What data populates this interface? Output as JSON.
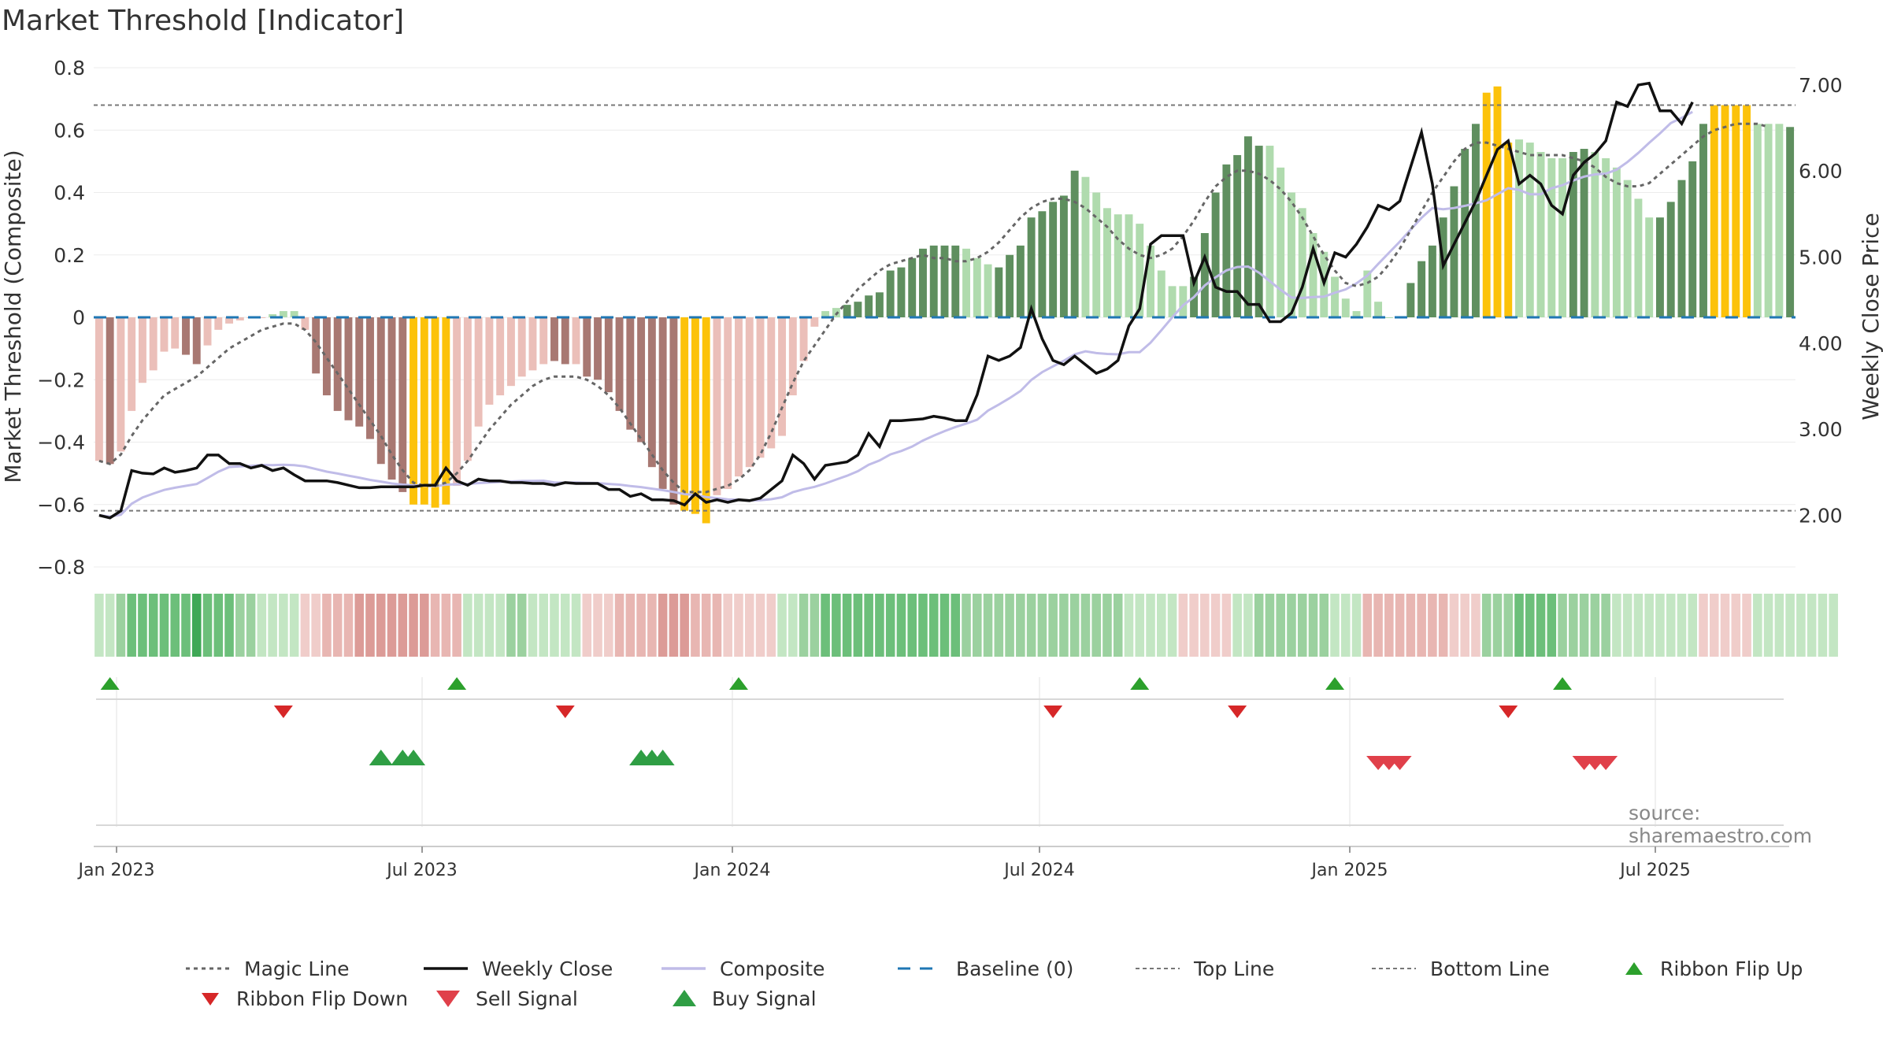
{
  "title": "Market Threshold [Indicator]",
  "source": "source: sharemaestro.com",
  "colors": {
    "pos_dark": "#5f8f5f",
    "pos_light": "#b0dbae",
    "neg_dark": "#a87872",
    "neg_light": "#ebbfb9",
    "extreme": "#fcc20a",
    "magic": "#666666",
    "close": "#111111",
    "composite": "#c0bce8",
    "baseline": "#1f77b4",
    "thresholds": "#777777",
    "buy": "#2ca02c",
    "sell": "#d62728"
  },
  "chart_data": {
    "type": "bar",
    "title": "Market Threshold [Indicator]",
    "ylabel": "Market Threshold (Composite)",
    "y2label": "Weekly Close Price",
    "ylim": [
      -0.8,
      0.8
    ],
    "y2lim": [
      1.4,
      7.2
    ],
    "yticks": [
      "0.8",
      "0.6",
      "0.4",
      "0.2",
      "0",
      "−0.2",
      "−0.4",
      "−0.6",
      "−0.8"
    ],
    "y2ticks": [
      "7.00",
      "6.00",
      "5.00",
      "4.00",
      "3.00",
      "2.00"
    ],
    "x_ticks": [
      "Jan 2023",
      "Jul 2023",
      "Jan 2024",
      "Jul 2024",
      "Jan 2025",
      "Jul 2025"
    ],
    "top_line": 0.68,
    "bottom_line": -0.62,
    "baseline": 0,
    "composite": [
      -0.46,
      -0.47,
      -0.43,
      -0.3,
      -0.21,
      -0.17,
      -0.11,
      -0.1,
      -0.12,
      -0.15,
      -0.09,
      -0.04,
      -0.02,
      -0.01,
      0.0,
      0.0,
      0.01,
      0.02,
      0.02,
      -0.04,
      -0.18,
      -0.25,
      -0.3,
      -0.33,
      -0.35,
      -0.39,
      -0.47,
      -0.52,
      -0.56,
      -0.6,
      -0.6,
      -0.61,
      -0.6,
      -0.54,
      -0.46,
      -0.35,
      -0.28,
      -0.25,
      -0.22,
      -0.19,
      -0.17,
      -0.15,
      -0.14,
      -0.15,
      -0.15,
      -0.19,
      -0.2,
      -0.24,
      -0.3,
      -0.36,
      -0.4,
      -0.48,
      -0.55,
      -0.6,
      -0.62,
      -0.63,
      -0.66,
      -0.57,
      -0.55,
      -0.51,
      -0.48,
      -0.45,
      -0.42,
      -0.38,
      -0.25,
      -0.14,
      -0.03,
      0.02,
      0.03,
      0.04,
      0.05,
      0.07,
      0.08,
      0.15,
      0.16,
      0.19,
      0.22,
      0.23,
      0.23,
      0.23,
      0.22,
      0.19,
      0.17,
      0.16,
      0.2,
      0.23,
      0.32,
      0.34,
      0.37,
      0.39,
      0.47,
      0.45,
      0.4,
      0.35,
      0.33,
      0.33,
      0.3,
      0.23,
      0.15,
      0.1,
      0.1,
      0.13,
      0.27,
      0.4,
      0.49,
      0.52,
      0.58,
      0.55,
      0.55,
      0.48,
      0.4,
      0.35,
      0.27,
      0.21,
      0.13,
      0.06,
      0.02,
      0.15,
      0.05,
      0.0,
      0.0,
      0.11,
      0.18,
      0.23,
      0.32,
      0.42,
      0.54,
      0.62,
      0.72,
      0.74,
      0.56,
      0.57,
      0.56,
      0.53,
      0.51,
      0.51,
      0.53,
      0.54,
      0.53,
      0.51,
      0.48,
      0.44,
      0.38,
      0.32,
      0.32,
      0.37,
      0.44,
      0.5,
      0.62,
      0.68,
      0.68,
      0.68,
      0.68,
      0.62,
      0.62,
      0.62,
      0.61
    ],
    "bar_shade": [
      "neg-l",
      "neg-d",
      "neg-l",
      "neg-l",
      "neg-l",
      "neg-l",
      "neg-l",
      "neg-l",
      "neg-d",
      "neg-d",
      "neg-l",
      "neg-l",
      "neg-l",
      "neg-l",
      "neg-l",
      "neg-l",
      "pos-l",
      "pos-l",
      "pos-l",
      "neg-l",
      "neg-d",
      "neg-d",
      "neg-d",
      "neg-d",
      "neg-d",
      "neg-d",
      "neg-d",
      "neg-d",
      "neg-d",
      "ext",
      "ext",
      "ext",
      "ext",
      "neg-l",
      "neg-l",
      "neg-l",
      "neg-l",
      "neg-l",
      "neg-l",
      "neg-l",
      "neg-l",
      "neg-l",
      "neg-d",
      "neg-d",
      "neg-l",
      "neg-d",
      "neg-d",
      "neg-d",
      "neg-d",
      "neg-d",
      "neg-d",
      "neg-d",
      "neg-d",
      "neg-d",
      "ext",
      "ext",
      "ext",
      "neg-l",
      "neg-l",
      "neg-l",
      "neg-l",
      "neg-l",
      "neg-l",
      "neg-l",
      "neg-l",
      "neg-l",
      "neg-l",
      "pos-l",
      "pos-l",
      "pos-d",
      "pos-d",
      "pos-d",
      "pos-d",
      "pos-d",
      "pos-d",
      "pos-d",
      "pos-d",
      "pos-d",
      "pos-d",
      "pos-d",
      "pos-l",
      "pos-l",
      "pos-l",
      "pos-d",
      "pos-d",
      "pos-d",
      "pos-d",
      "pos-d",
      "pos-d",
      "pos-d",
      "pos-d",
      "pos-l",
      "pos-l",
      "pos-l",
      "pos-l",
      "pos-l",
      "pos-l",
      "pos-l",
      "pos-l",
      "pos-l",
      "pos-l",
      "pos-d",
      "pos-d",
      "pos-d",
      "pos-d",
      "pos-d",
      "pos-d",
      "pos-d",
      "pos-l",
      "pos-l",
      "pos-l",
      "pos-l",
      "pos-l",
      "pos-l",
      "pos-l",
      "pos-l",
      "pos-l",
      "pos-l",
      "pos-l",
      "pos-l",
      "pos-l",
      "pos-d",
      "pos-d",
      "pos-d",
      "pos-d",
      "pos-d",
      "pos-d",
      "pos-d",
      "ext",
      "ext",
      "ext",
      "pos-l",
      "pos-l",
      "pos-l",
      "pos-l",
      "pos-l",
      "pos-d",
      "pos-d",
      "pos-l",
      "pos-l",
      "pos-l",
      "pos-l",
      "pos-l",
      "pos-l",
      "pos-d",
      "pos-d",
      "pos-d",
      "pos-d",
      "pos-d",
      "ext",
      "ext",
      "ext",
      "ext",
      "pos-l",
      "pos-l",
      "pos-l",
      "pos-d"
    ],
    "magic_line": [
      -0.46,
      -0.47,
      -0.44,
      -0.38,
      -0.33,
      -0.29,
      -0.25,
      -0.23,
      -0.21,
      -0.19,
      -0.16,
      -0.13,
      -0.1,
      -0.08,
      -0.06,
      -0.04,
      -0.03,
      -0.02,
      -0.02,
      -0.04,
      -0.08,
      -0.13,
      -0.18,
      -0.23,
      -0.28,
      -0.33,
      -0.38,
      -0.44,
      -0.49,
      -0.53,
      -0.54,
      -0.54,
      -0.53,
      -0.5,
      -0.46,
      -0.41,
      -0.36,
      -0.32,
      -0.28,
      -0.25,
      -0.22,
      -0.2,
      -0.19,
      -0.19,
      -0.19,
      -0.2,
      -0.22,
      -0.25,
      -0.29,
      -0.34,
      -0.39,
      -0.44,
      -0.49,
      -0.53,
      -0.56,
      -0.56,
      -0.56,
      -0.55,
      -0.54,
      -0.52,
      -0.49,
      -0.44,
      -0.37,
      -0.29,
      -0.21,
      -0.14,
      -0.09,
      -0.04,
      0.01,
      0.05,
      0.09,
      0.12,
      0.15,
      0.17,
      0.18,
      0.19,
      0.2,
      0.19,
      0.19,
      0.18,
      0.18,
      0.19,
      0.21,
      0.24,
      0.28,
      0.32,
      0.35,
      0.37,
      0.38,
      0.38,
      0.37,
      0.35,
      0.32,
      0.29,
      0.25,
      0.22,
      0.2,
      0.19,
      0.2,
      0.22,
      0.26,
      0.31,
      0.37,
      0.42,
      0.45,
      0.47,
      0.47,
      0.46,
      0.44,
      0.41,
      0.37,
      0.32,
      0.26,
      0.2,
      0.15,
      0.11,
      0.1,
      0.11,
      0.13,
      0.17,
      0.22,
      0.28,
      0.34,
      0.4,
      0.45,
      0.5,
      0.54,
      0.56,
      0.56,
      0.55,
      0.54,
      0.53,
      0.52,
      0.52,
      0.52,
      0.52,
      0.51,
      0.5,
      0.48,
      0.45,
      0.43,
      0.42,
      0.42,
      0.43,
      0.46,
      0.49,
      0.52,
      0.55,
      0.58,
      0.6,
      0.61,
      0.62,
      0.62,
      0.62,
      0.61
    ],
    "weekly_close": [
      2.0,
      1.97,
      2.05,
      2.52,
      2.49,
      2.48,
      2.55,
      2.5,
      2.52,
      2.55,
      2.7,
      2.7,
      2.6,
      2.6,
      2.55,
      2.58,
      2.52,
      2.55,
      2.47,
      2.4,
      2.4,
      2.4,
      2.38,
      2.35,
      2.32,
      2.32,
      2.33,
      2.33,
      2.33,
      2.33,
      2.35,
      2.35,
      2.55,
      2.4,
      2.35,
      2.42,
      2.4,
      2.4,
      2.38,
      2.38,
      2.37,
      2.37,
      2.35,
      2.38,
      2.37,
      2.37,
      2.37,
      2.3,
      2.3,
      2.22,
      2.25,
      2.18,
      2.18,
      2.17,
      2.12,
      2.25,
      2.15,
      2.18,
      2.15,
      2.18,
      2.17,
      2.2,
      2.3,
      2.4,
      2.7,
      2.6,
      2.42,
      2.58,
      2.6,
      2.62,
      2.7,
      2.95,
      2.8,
      3.1,
      3.1,
      3.11,
      3.12,
      3.15,
      3.13,
      3.1,
      3.1,
      3.4,
      3.85,
      3.8,
      3.85,
      3.95,
      4.4,
      4.05,
      3.8,
      3.75,
      3.85,
      3.75,
      3.65,
      3.7,
      3.8,
      4.2,
      4.4,
      5.15,
      5.25,
      5.25,
      5.25,
      4.7,
      5.0,
      4.65,
      4.6,
      4.6,
      4.45,
      4.45,
      4.25,
      4.25,
      4.35,
      4.65,
      5.1,
      4.7,
      5.05,
      5.0,
      5.15,
      5.35,
      5.6,
      5.55,
      5.65,
      6.05,
      6.45,
      5.85,
      4.9,
      5.15,
      5.4,
      5.65,
      5.95,
      6.25,
      6.35,
      5.85,
      5.95,
      5.85,
      5.6,
      5.5,
      5.95,
      6.1,
      6.2,
      6.35,
      6.8,
      6.75,
      7.0,
      7.02,
      6.7,
      6.7,
      6.55,
      6.8
    ],
    "ribbon_strength": [
      1,
      1,
      2,
      3,
      3,
      3,
      3,
      3,
      3,
      4,
      3,
      3,
      3,
      2,
      2,
      1,
      1,
      1,
      1,
      -1,
      -1,
      -2,
      -2,
      -2,
      -3,
      -3,
      -3,
      -3,
      -3,
      -3,
      -3,
      -2,
      -2,
      -2,
      1,
      1,
      1,
      1,
      2,
      2,
      1,
      1,
      1,
      1,
      1,
      -1,
      -1,
      -1,
      -2,
      -2,
      -2,
      -2,
      -3,
      -3,
      -3,
      -2,
      -2,
      -2,
      -1,
      -1,
      -1,
      -1,
      -1,
      1,
      1,
      2,
      2,
      3,
      3,
      3,
      3,
      3,
      3,
      3,
      3,
      3,
      3,
      3,
      3,
      3,
      2,
      2,
      2,
      2,
      2,
      2,
      2,
      2,
      2,
      2,
      2,
      2,
      2,
      2,
      2,
      1,
      1,
      1,
      1,
      1,
      -1,
      -1,
      -1,
      -1,
      -1,
      1,
      1,
      2,
      2,
      2,
      2,
      2,
      2,
      2,
      1,
      1,
      1,
      -2,
      -2,
      -2,
      -2,
      -2,
      -2,
      -2,
      -2,
      -1,
      -1,
      -1,
      2,
      2,
      2,
      3,
      3,
      3,
      3,
      2,
      2,
      2,
      2,
      2,
      1,
      1,
      1,
      1,
      1,
      1,
      1,
      1,
      -1,
      -1,
      -1,
      -1,
      -1,
      1,
      1,
      1,
      1,
      1,
      1,
      1,
      1
    ],
    "ribbon_flip_up": [
      1,
      33,
      59,
      96,
      114,
      135
    ],
    "ribbon_flip_down": [
      17,
      43,
      88,
      105,
      130
    ],
    "buy_signals": [
      26,
      28,
      29,
      50,
      51,
      52
    ],
    "sell_signals": [
      118,
      119,
      120,
      137,
      138,
      139
    ],
    "legend": [
      "Magic Line",
      "Weekly Close",
      "Composite",
      "Baseline (0)",
      "Top Line",
      "Bottom Line",
      "Ribbon Flip Up",
      "Ribbon Flip Down",
      "Sell Signal",
      "Buy Signal"
    ]
  }
}
